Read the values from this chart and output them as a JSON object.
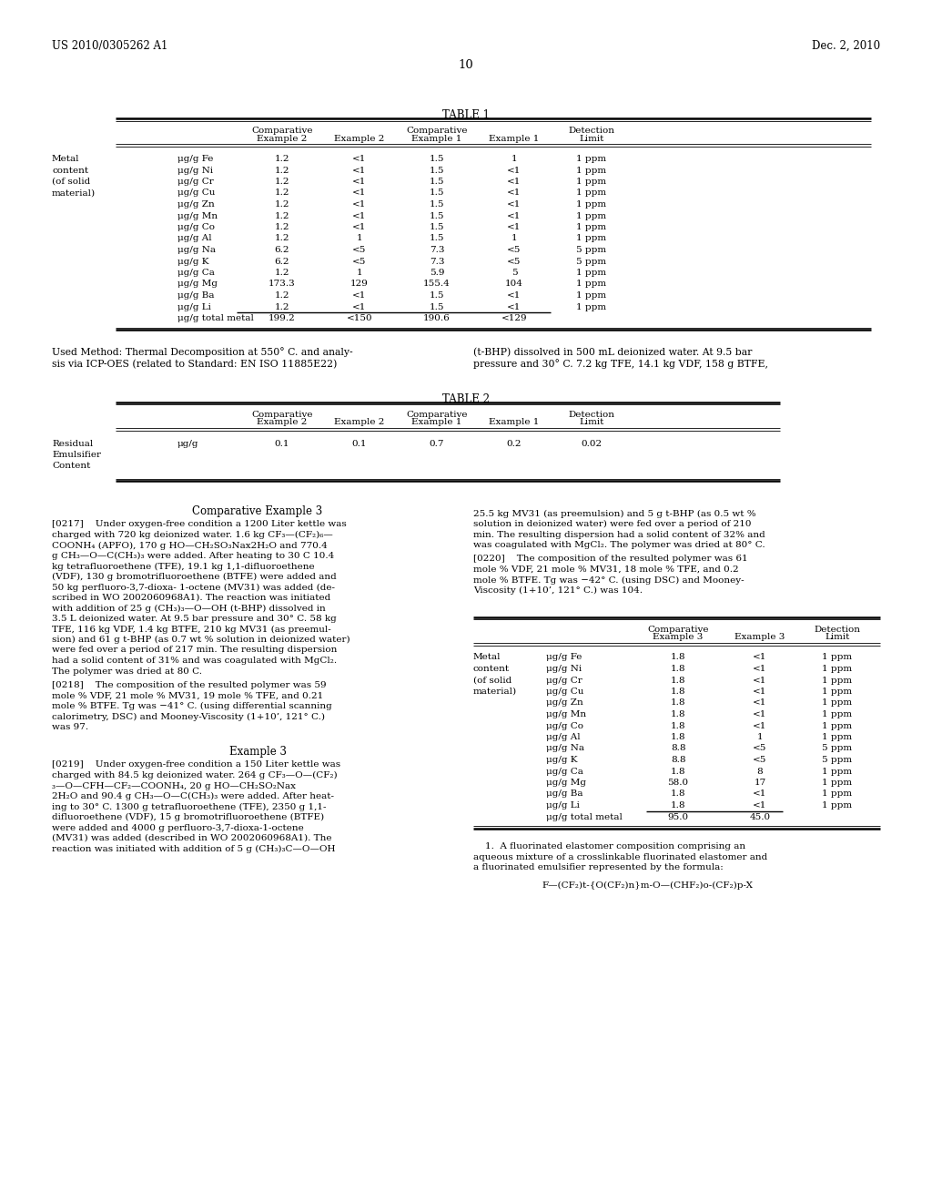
{
  "header_left": "US 2010/0305262 A1",
  "header_right": "Dec. 2, 2010",
  "page_number": "10",
  "background_color": "#ffffff",
  "table1_title": "TABLE 1",
  "table1_rows": [
    [
      "Metal",
      "μg/g Fe",
      "1.2",
      "<1",
      "1.5",
      "1",
      "1 ppm"
    ],
    [
      "content",
      "μg/g Ni",
      "1.2",
      "<1",
      "1.5",
      "<1",
      "1 ppm"
    ],
    [
      "(of solid",
      "μg/g Cr",
      "1.2",
      "<1",
      "1.5",
      "<1",
      "1 ppm"
    ],
    [
      "material)",
      "μg/g Cu",
      "1.2",
      "<1",
      "1.5",
      "<1",
      "1 ppm"
    ],
    [
      "",
      "μg/g Zn",
      "1.2",
      "<1",
      "1.5",
      "<1",
      "1 ppm"
    ],
    [
      "",
      "μg/g Mn",
      "1.2",
      "<1",
      "1.5",
      "<1",
      "1 ppm"
    ],
    [
      "",
      "μg/g Co",
      "1.2",
      "<1",
      "1.5",
      "<1",
      "1 ppm"
    ],
    [
      "",
      "μg/g Al",
      "1.2",
      "1",
      "1.5",
      "1",
      "1 ppm"
    ],
    [
      "",
      "μg/g Na",
      "6.2",
      "<5",
      "7.3",
      "<5",
      "5 ppm"
    ],
    [
      "",
      "μg/g K",
      "6.2",
      "<5",
      "7.3",
      "<5",
      "5 ppm"
    ],
    [
      "",
      "μg/g Ca",
      "1.2",
      "1",
      "5.9",
      "5",
      "1 ppm"
    ],
    [
      "",
      "μg/g Mg",
      "173.3",
      "129",
      "155.4",
      "104",
      "1 ppm"
    ],
    [
      "",
      "μg/g Ba",
      "1.2",
      "<1",
      "1.5",
      "<1",
      "1 ppm"
    ],
    [
      "",
      "μg/g Li",
      "1.2",
      "<1",
      "1.5",
      "<1",
      "1 ppm"
    ],
    [
      "",
      "μg/g total metal",
      "199.2",
      "<150",
      "190.6",
      "<129",
      ""
    ]
  ],
  "table2_title": "TABLE 2",
  "table2_rows": [
    [
      "Residual\nEmulsifier\nContent",
      "μg/g",
      "0.1",
      "0.1",
      "0.7",
      "0.2",
      "0.02"
    ]
  ],
  "footnote_left1": "Used Method: Thermal Decomposition at 550° C. and analy-",
  "footnote_left2": "sis via ICP-OES (related to Standard: EN ISO 11885E22)",
  "footnote_right1": "(t-BHP) dissolved in 500 mL deionized water. At 9.5 bar",
  "footnote_right2": "pressure and 30° C. 7.2 kg TFE, 14.1 kg VDF, 158 g BTFE,",
  "comp_example3_title": "Comparative Example 3",
  "para_0217_lines": [
    "[0217]    Under oxygen-free condition a 1200 Liter kettle was",
    "charged with 720 kg deionized water. 1.6 kg CF₃—(CF₂)₆—",
    "COONH₄ (APFO), 170 g HO—CH₂SO₃Nax2H₂O and 770.4",
    "g CH₃—O—C(CH₃)₃ were added. After heating to 30 C 10.4",
    "kg tetrafluoroethene (TFE), 19.1 kg 1,1-difluoroethene",
    "(VDF), 130 g bromotrifluoroethene (BTFE) were added and",
    "50 kg perfluoro-3,7-dioxa- 1-octene (MV31) was added (de-",
    "scribed in WO 2002060968A1). The reaction was initiated",
    "with addition of 25 g (CH₃)₃—O—OH (t-BHP) dissolved in",
    "3.5 L deionized water. At 9.5 bar pressure and 30° C. 58 kg",
    "TFE, 116 kg VDF, 1.4 kg BTFE, 210 kg MV31 (as preemul-",
    "sion) and 61 g t-BHP (as 0.7 wt % solution in deionized water)",
    "were fed over a period of 217 min. The resulting dispersion",
    "had a solid content of 31% and was coagulated with MgCl₂.",
    "The polymer was dried at 80 C."
  ],
  "para_0218_lines": [
    "[0218]    The composition of the resulted polymer was 59",
    "mole % VDF, 21 mole % MV31, 19 mole % TFE, and 0.21",
    "mole % BTFE. Tg was −41° C. (using differential scanning",
    "calorimetry, DSC) and Mooney-Viscosity (1+10’, 121° C.)",
    "was 97."
  ],
  "example3_title": "Example 3",
  "para_0219_lines": [
    "[0219]    Under oxygen-free condition a 150 Liter kettle was",
    "charged with 84.5 kg deionized water. 264 g CF₃—O—(CF₂)",
    "₃—O—CFH—CF₂—COONH₄, 20 g HO—CH₂SO₂Nax",
    "2H₂O and 90.4 g CH₃—O—C(CH₃)₃ were added. After heat-",
    "ing to 30° C. 1300 g tetrafluoroethene (TFE), 2350 g 1,1-",
    "difluoroethene (VDF), 15 g bromotrifluoroethene (BTFE)",
    "were added and 4000 g perfluoro-3,7-dioxa-1-octene",
    "(MV31) was added (described in WO 2002060968A1). The",
    "reaction was initiated with addition of 5 g (CH₃)₃C—O—OH"
  ],
  "para_right_cont_lines": [
    "25.5 kg MV31 (as preemulsion) and 5 g t-BHP (as 0.5 wt %",
    "solution in deionized water) were fed over a period of 210",
    "min. The resulting dispersion had a solid content of 32% and",
    "was coagulated with MgCl₂. The polymer was dried at 80° C."
  ],
  "para_0220_lines": [
    "[0220]    The composition of the resulted polymer was 61",
    "mole % VDF, 21 mole % MV31, 18 mole % TFE, and 0.2",
    "mole % BTFE. Tg was −42° C. (using DSC) and Mooney-",
    "Viscosity (1+10’, 121° C.) was 104."
  ],
  "table3_rows": [
    [
      "Metal",
      "μg/g Fe",
      "1.8",
      "<1",
      "1 ppm"
    ],
    [
      "content",
      "μg/g Ni",
      "1.8",
      "<1",
      "1 ppm"
    ],
    [
      "(of solid",
      "μg/g Cr",
      "1.8",
      "<1",
      "1 ppm"
    ],
    [
      "material)",
      "μg/g Cu",
      "1.8",
      "<1",
      "1 ppm"
    ],
    [
      "",
      "μg/g Zn",
      "1.8",
      "<1",
      "1 ppm"
    ],
    [
      "",
      "μg/g Mn",
      "1.8",
      "<1",
      "1 ppm"
    ],
    [
      "",
      "μg/g Co",
      "1.8",
      "<1",
      "1 ppm"
    ],
    [
      "",
      "μg/g Al",
      "1.8",
      "1",
      "1 ppm"
    ],
    [
      "",
      "μg/g Na",
      "8.8",
      "<5",
      "5 ppm"
    ],
    [
      "",
      "μg/g K",
      "8.8",
      "<5",
      "5 ppm"
    ],
    [
      "",
      "μg/g Ca",
      "1.8",
      "8",
      "1 ppm"
    ],
    [
      "",
      "μg/g Mg",
      "58.0",
      "17",
      "1 ppm"
    ],
    [
      "",
      "μg/g Ba",
      "1.8",
      "<1",
      "1 ppm"
    ],
    [
      "",
      "μg/g Li",
      "1.8",
      "<1",
      "1 ppm"
    ],
    [
      "",
      "μg/g total metal",
      "95.0",
      "45.0",
      ""
    ]
  ],
  "claim1_lines": [
    "    1.  A fluorinated elastomer composition comprising an",
    "aqueous mixture of a crosslinkable fluorinated elastomer and",
    "a fluorinated emulsifier represented by the formula:"
  ],
  "claim1_formula": "F—(CF₂)t-{O(CF₂)n}m-O—(CHF₂)o-(CF₂)p-X"
}
